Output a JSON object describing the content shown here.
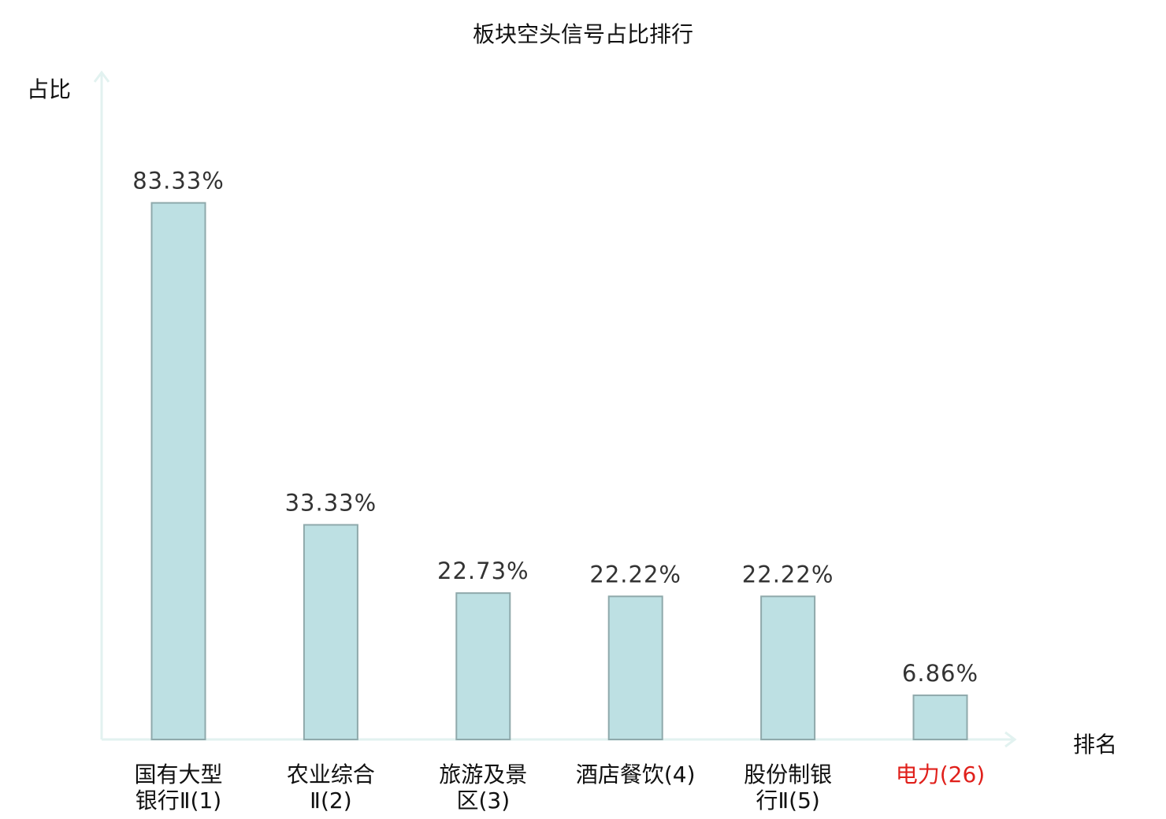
{
  "chart_data": {
    "type": "bar",
    "title": "板块空头信号占比排行",
    "ylabel": "占比",
    "xlabel": "排名",
    "categories": [
      [
        "国有大型",
        "银行Ⅱ(1)"
      ],
      [
        "农业综合",
        "Ⅱ(2)"
      ],
      [
        "旅游及景",
        "区(3)"
      ],
      [
        "酒店餐饮(4)"
      ],
      [
        "股份制银",
        "行Ⅱ(5)"
      ],
      [
        "电力(26)"
      ]
    ],
    "values": [
      83.33,
      33.33,
      22.73,
      22.22,
      22.22,
      6.86
    ],
    "value_labels": [
      "83.33%",
      "33.33%",
      "22.73%",
      "22.22%",
      "22.22%",
      "6.86%"
    ],
    "highlight_index": 5,
    "ylim": [
      0,
      100
    ],
    "grid": false,
    "colors": {
      "bar_fill": "#bde0e3",
      "bar_stroke": "#8fa9ab",
      "axis": "#e2f2f0",
      "highlight_label": "#e0201b",
      "value_label": "#333333"
    }
  }
}
